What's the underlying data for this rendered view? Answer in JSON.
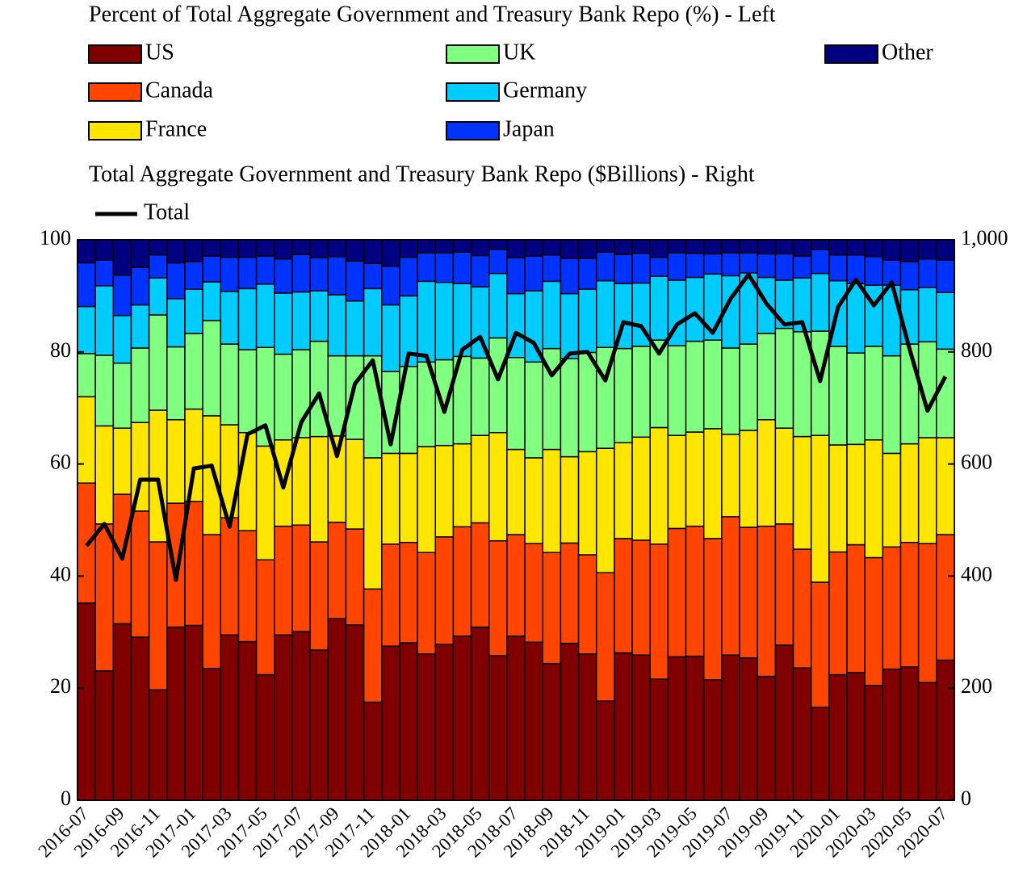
{
  "chart_data": {
    "type": "bar",
    "stacked": true,
    "title": "Percent of Total Aggregate Government and Treasury Bank Repo (%) - Left",
    "subtitle": "Total Aggregate Government and Treasury Bank Repo ($Billions) - Right",
    "categories": [
      "2016-07",
      null,
      "2016-09",
      null,
      "2016-11",
      null,
      "2017-01",
      null,
      "2017-03",
      null,
      "2017-05",
      null,
      "2017-07",
      null,
      "2017-09",
      null,
      "2017-11",
      null,
      "2018-01",
      null,
      "2018-03",
      null,
      "2018-05",
      null,
      "2018-07",
      null,
      "2018-09",
      null,
      "2018-11",
      null,
      "2019-01",
      null,
      "2019-03",
      null,
      "2019-05",
      null,
      "2019-07",
      null,
      "2019-09",
      null,
      "2019-11",
      null,
      "2020-01",
      null,
      "2020-03",
      null,
      "2020-05",
      null,
      "2020-07"
    ],
    "ylim": [
      0,
      100
    ],
    "yticks": [
      0,
      20,
      40,
      60,
      80,
      100
    ],
    "y2lim": [
      0,
      1000
    ],
    "y2ticks": [
      0,
      200,
      400,
      600,
      800,
      {
        "value": 1000,
        "label": "1,000"
      }
    ],
    "series": [
      {
        "name": "US",
        "color": "#800000",
        "values": [
          35.2,
          23.1,
          31.5,
          29.1,
          19.7,
          30.9,
          31.2,
          23.5,
          29.5,
          28.3,
          22.4,
          29.5,
          30.1,
          26.8,
          32.4,
          31.3,
          17.5,
          27.5,
          28.1,
          26.1,
          27.8,
          29.3,
          30.9,
          25.8,
          29.3,
          28.2,
          24.4,
          28.0,
          26.1,
          17.7,
          26.3,
          25.9,
          21.6,
          25.6,
          25.7,
          21.5,
          25.9,
          25.4,
          22.1,
          27.7,
          23.6,
          16.6,
          22.4,
          22.8,
          20.5,
          23.4,
          23.8,
          21.0,
          25.0
        ]
      },
      {
        "name": "Canada",
        "color": "#ff4500",
        "values": [
          21.4,
          26.2,
          23.1,
          22.5,
          26.4,
          22.1,
          22.1,
          23.9,
          20.9,
          19.8,
          20.5,
          19.4,
          19.0,
          19.3,
          17.2,
          17.1,
          20.2,
          18.2,
          17.9,
          18.1,
          19.2,
          19.5,
          18.6,
          20.5,
          18.1,
          17.6,
          19.8,
          17.9,
          17.7,
          22.9,
          20.4,
          20.5,
          24.1,
          22.9,
          23.2,
          25.2,
          24.7,
          23.3,
          26.8,
          21.6,
          21.2,
          22.3,
          21.9,
          22.8,
          22.8,
          21.8,
          22.2,
          24.8,
          22.4
        ]
      },
      {
        "name": "France",
        "color": "#ffe600",
        "values": [
          15.4,
          17.5,
          11.8,
          15.8,
          23.5,
          14.9,
          16.5,
          21.2,
          16.6,
          17.5,
          20.3,
          15.4,
          15.6,
          18.8,
          15.4,
          16.0,
          23.4,
          16.2,
          15.9,
          18.9,
          16.3,
          14.8,
          15.6,
          19.3,
          15.2,
          15.3,
          18.4,
          15.4,
          18.4,
          22.2,
          17.1,
          18.4,
          20.8,
          16.6,
          16.8,
          19.6,
          14.7,
          17.3,
          19.0,
          17.1,
          20.1,
          26.2,
          19.1,
          17.9,
          21.0,
          16.7,
          17.6,
          18.9,
          17.3
        ]
      },
      {
        "name": "UK",
        "color": "#80ff80",
        "values": [
          7.7,
          12.6,
          11.6,
          13.3,
          17.0,
          13.0,
          13.5,
          17.0,
          14.4,
          14.8,
          17.6,
          15.3,
          15.7,
          17.0,
          14.3,
          14.9,
          18.2,
          14.6,
          15.5,
          15.1,
          15.3,
          15.6,
          13.8,
          16.9,
          16.4,
          17.1,
          18.0,
          17.5,
          17.7,
          18.0,
          16.8,
          16.2,
          15.6,
          16.0,
          16.2,
          15.8,
          15.4,
          15.4,
          15.4,
          17.8,
          18.7,
          18.6,
          17.6,
          16.3,
          16.7,
          17.4,
          17.8,
          17.1,
          15.8
        ]
      },
      {
        "name": "Germany",
        "color": "#00ccff",
        "values": [
          8.4,
          12.4,
          8.5,
          7.7,
          6.6,
          8.6,
          7.9,
          6.9,
          9.4,
          10.9,
          11.3,
          10.9,
          10.3,
          9.0,
          10.9,
          9.8,
          12.0,
          11.9,
          12.6,
          14.4,
          13.8,
          13.0,
          12.7,
          11.5,
          11.4,
          12.7,
          12.0,
          11.6,
          11.3,
          11.9,
          11.6,
          11.3,
          11.4,
          11.7,
          11.4,
          11.8,
          12.9,
          12.7,
          10.0,
          8.6,
          9.6,
          10.3,
          11.7,
          12.4,
          10.9,
          12.6,
          9.7,
          9.7,
          10.1
        ]
      },
      {
        "name": "Japan",
        "color": "#0033ff",
        "values": [
          7.8,
          4.6,
          7.2,
          6.7,
          4.1,
          6.4,
          4.9,
          4.6,
          6.1,
          5.6,
          5.0,
          6.1,
          6.7,
          5.9,
          6.8,
          7.1,
          4.5,
          6.9,
          6.9,
          5.1,
          5.3,
          5.6,
          5.6,
          4.3,
          6.4,
          6.2,
          4.7,
          6.3,
          5.5,
          5.1,
          5.2,
          5.3,
          3.4,
          4.9,
          4.3,
          3.6,
          4.1,
          3.6,
          4.2,
          4.7,
          3.9,
          4.3,
          4.6,
          5.1,
          5.1,
          4.5,
          5.0,
          5.1,
          5.8
        ]
      },
      {
        "name": "Other",
        "color": "#000080",
        "values": [
          4.1,
          3.6,
          6.3,
          4.9,
          2.7,
          4.1,
          3.9,
          2.9,
          3.1,
          3.1,
          2.9,
          3.4,
          2.6,
          3.2,
          3.0,
          3.8,
          4.2,
          4.7,
          3.1,
          2.3,
          2.3,
          2.2,
          2.8,
          1.7,
          3.2,
          2.9,
          2.7,
          3.3,
          3.3,
          2.2,
          2.6,
          2.4,
          3.1,
          2.3,
          2.4,
          2.5,
          2.3,
          2.3,
          2.5,
          2.5,
          2.9,
          1.7,
          2.7,
          2.7,
          3.0,
          3.6,
          3.9,
          3.4,
          3.6
        ]
      },
      {
        "name": "Total",
        "color": "#000000",
        "type": "line",
        "axis": "y2",
        "values": [
          454,
          493,
          431,
          572,
          572,
          393,
          592,
          597,
          488,
          653,
          669,
          558,
          674,
          726,
          614,
          743,
          785,
          635,
          797,
          793,
          693,
          804,
          827,
          751,
          834,
          816,
          758,
          797,
          800,
          749,
          853,
          846,
          797,
          849,
          869,
          834,
          895,
          938,
          886,
          849,
          853,
          748,
          880,
          929,
          883,
          924,
          805,
          695,
          756
        ]
      }
    ]
  }
}
